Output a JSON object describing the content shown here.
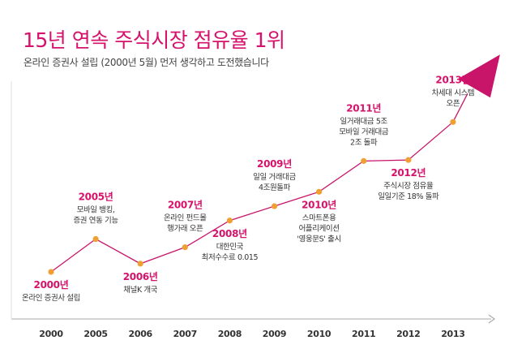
{
  "title": "15년 연속 주식시장 점유율 1위",
  "subtitle": "온라인 증권사 설립 (2000년 5월) 먼저 생각하고 도전했습니다",
  "colors": {
    "accent": "#d6126b",
    "line": "#c8156a",
    "point": "#f0a033",
    "axis": "#aaaaaa"
  },
  "chart_data": {
    "type": "line",
    "title": "15년 연속 주식시장 점유율 1위",
    "subtitle": "온라인 증권사 설립 (2000년 5월) 먼저 생각하고 도전했습니다",
    "x_ticks": [
      "2000",
      "2005",
      "2006",
      "2007",
      "2008",
      "2009",
      "2010",
      "2011",
      "2012",
      "2013"
    ],
    "y_values": [
      1,
      2.6,
      1.4,
      2.2,
      3.5,
      4.2,
      4.9,
      6.4,
      6.45,
      8.3
    ],
    "end_arrow": true,
    "grid": false,
    "annotations": [
      {
        "year": "2000년",
        "lines": [
          "온라인 증권사 설립"
        ],
        "pos": "below"
      },
      {
        "year": "2005년",
        "lines": [
          "모바일 뱅킹,",
          "증권 연동 기능"
        ],
        "pos": "above"
      },
      {
        "year": "2006년",
        "lines": [
          "채널K 개국"
        ],
        "pos": "below"
      },
      {
        "year": "2007년",
        "lines": [
          "온라인 펀드몰",
          "행가래 오픈"
        ],
        "pos": "above"
      },
      {
        "year": "2008년",
        "lines": [
          "대한민국",
          "최저수수료 0.015"
        ],
        "pos": "below"
      },
      {
        "year": "2009년",
        "lines": [
          "일일 거래대금",
          "4조원돌파"
        ],
        "pos": "above"
      },
      {
        "year": "2010년",
        "lines": [
          "스마트폰용",
          "어플리케이션",
          "'영웅문S' 출시"
        ],
        "pos": "below"
      },
      {
        "year": "2011년",
        "lines": [
          "일거래대금 5조",
          "모바일 거래대금",
          "2조 돌파"
        ],
        "pos": "above"
      },
      {
        "year": "2012년",
        "lines": [
          "주식시장 점유율",
          "일일기준 18% 돌파"
        ],
        "pos": "below"
      },
      {
        "year": "2013년",
        "lines": [
          "차세대 시스템",
          "오픈"
        ],
        "pos": "above"
      }
    ]
  }
}
